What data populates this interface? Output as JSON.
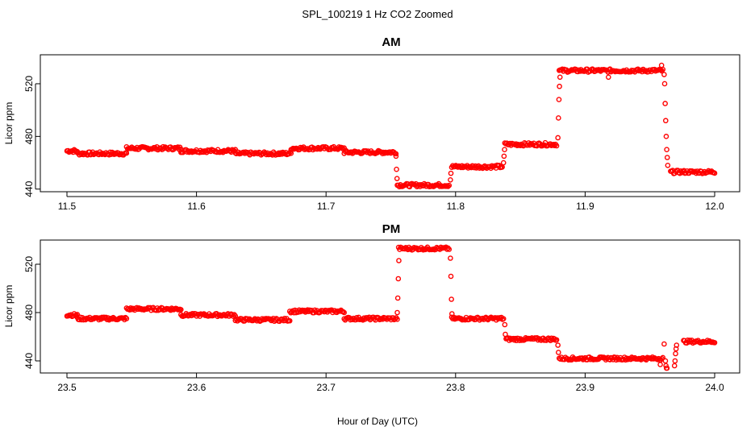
{
  "figure": {
    "title": "SPL_100219  1 Hz CO2 Zoomed",
    "xlabel": "Hour of Day (UTC)",
    "point_color": "#ff0000"
  },
  "chart_data": [
    {
      "type": "scatter",
      "title": "AM",
      "xlabel": "Hour of Day (UTC)",
      "ylabel": "Licor ppm",
      "xlim": [
        11.5,
        12.0
      ],
      "ylim": [
        438,
        542
      ],
      "x_ticks": [
        "11.5",
        "11.6",
        "11.7",
        "11.8",
        "11.9",
        "12.0"
      ],
      "y_ticks": [
        "440",
        "480",
        "520"
      ],
      "segments": [
        {
          "x0": 11.5,
          "x1": 11.508,
          "y": 469
        },
        {
          "x0": 11.508,
          "x1": 11.546,
          "y": 467
        },
        {
          "x0": 11.546,
          "x1": 11.588,
          "y": 471
        },
        {
          "x0": 11.588,
          "x1": 11.63,
          "y": 469
        },
        {
          "x0": 11.63,
          "x1": 11.673,
          "y": 467
        },
        {
          "x0": 11.673,
          "x1": 11.714,
          "y": 471
        },
        {
          "x0": 11.714,
          "x1": 11.754,
          "y": 468
        },
        {
          "x0": 11.755,
          "x1": 11.795,
          "y": 443
        },
        {
          "x0": 11.797,
          "x1": 11.836,
          "y": 457
        },
        {
          "x0": 11.838,
          "x1": 11.878,
          "y": 474
        },
        {
          "x0": 11.88,
          "x1": 11.96,
          "y": 530
        },
        {
          "x0": 11.966,
          "x1": 12.0,
          "y": 453
        }
      ],
      "transitions": [
        {
          "x": 11.754,
          "ys": [
            465,
            455,
            448
          ]
        },
        {
          "x": 11.796,
          "ys": [
            447,
            452
          ]
        },
        {
          "x": 11.837,
          "ys": [
            460,
            465,
            470
          ]
        },
        {
          "x": 11.879,
          "ys": [
            479,
            494,
            508,
            518,
            525
          ]
        },
        {
          "x": 11.961,
          "ys": [
            527,
            520,
            505,
            492,
            480,
            470,
            464,
            458
          ]
        }
      ],
      "outliers": [
        {
          "x": 11.918,
          "y": 525
        },
        {
          "x": 11.959,
          "y": 534
        }
      ]
    },
    {
      "type": "scatter",
      "title": "PM",
      "xlabel": "Hour of Day (UTC)",
      "ylabel": "Licor ppm",
      "xlim": [
        23.5,
        24.0
      ],
      "ylim": [
        430,
        540
      ],
      "x_ticks": [
        "23.5",
        "23.6",
        "23.7",
        "23.8",
        "23.9",
        "24.0"
      ],
      "y_ticks": [
        "440",
        "480",
        "520"
      ],
      "segments": [
        {
          "x0": 23.5,
          "x1": 23.508,
          "y": 478
        },
        {
          "x0": 23.508,
          "x1": 23.546,
          "y": 475
        },
        {
          "x0": 23.546,
          "x1": 23.588,
          "y": 483
        },
        {
          "x0": 23.588,
          "x1": 23.63,
          "y": 478
        },
        {
          "x0": 23.63,
          "x1": 23.672,
          "y": 474
        },
        {
          "x0": 23.672,
          "x1": 23.714,
          "y": 481
        },
        {
          "x0": 23.714,
          "x1": 23.755,
          "y": 475
        },
        {
          "x0": 23.756,
          "x1": 23.795,
          "y": 533
        },
        {
          "x0": 23.797,
          "x1": 23.837,
          "y": 475
        },
        {
          "x0": 23.839,
          "x1": 23.878,
          "y": 458
        },
        {
          "x0": 23.88,
          "x1": 23.96,
          "y": 442
        },
        {
          "x0": 23.976,
          "x1": 24.0,
          "y": 456
        }
      ],
      "transitions": [
        {
          "x": 23.755,
          "ys": [
            480,
            492,
            508,
            523
          ]
        },
        {
          "x": 23.796,
          "ys": [
            525,
            510,
            491,
            479
          ]
        },
        {
          "x": 23.838,
          "ys": [
            470,
            462
          ]
        },
        {
          "x": 23.879,
          "ys": [
            453,
            447
          ]
        },
        {
          "x": 23.962,
          "ys": [
            440,
            436,
            434,
            434
          ]
        },
        {
          "x": 23.969,
          "ys": [
            436,
            440,
            446,
            450,
            453
          ]
        }
      ],
      "outliers": [
        {
          "x": 23.961,
          "y": 454
        },
        {
          "x": 23.958,
          "y": 437
        }
      ]
    }
  ]
}
